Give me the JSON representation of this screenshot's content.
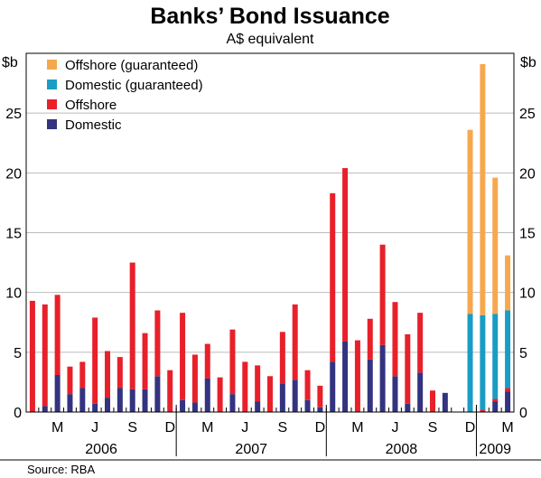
{
  "chart_data": {
    "type": "bar",
    "stacked": true,
    "title": "Banks’ Bond Issuance",
    "subtitle": "A$ equivalent",
    "yunit_left": "$b",
    "yunit_right": "$b",
    "ylim": [
      0,
      30
    ],
    "yticks": [
      0,
      5,
      10,
      15,
      20,
      25
    ],
    "source": "Source: RBA",
    "months": [
      "2006-01",
      "2006-02",
      "2006-03",
      "2006-04",
      "2006-05",
      "2006-06",
      "2006-07",
      "2006-08",
      "2006-09",
      "2006-10",
      "2006-11",
      "2006-12",
      "2007-01",
      "2007-02",
      "2007-03",
      "2007-04",
      "2007-05",
      "2007-06",
      "2007-07",
      "2007-08",
      "2007-09",
      "2007-10",
      "2007-11",
      "2007-12",
      "2008-01",
      "2008-02",
      "2008-03",
      "2008-04",
      "2008-05",
      "2008-06",
      "2008-07",
      "2008-08",
      "2008-09",
      "2008-10",
      "2008-11",
      "2008-12",
      "2009-01",
      "2009-02",
      "2009-03"
    ],
    "month_tick_labels": [
      {
        "month": "2006-03",
        "label": "M"
      },
      {
        "month": "2006-06",
        "label": "J"
      },
      {
        "month": "2006-09",
        "label": "S"
      },
      {
        "month": "2006-12",
        "label": "D"
      },
      {
        "month": "2007-03",
        "label": "M"
      },
      {
        "month": "2007-06",
        "label": "J"
      },
      {
        "month": "2007-09",
        "label": "S"
      },
      {
        "month": "2007-12",
        "label": "D"
      },
      {
        "month": "2008-03",
        "label": "M"
      },
      {
        "month": "2008-06",
        "label": "J"
      },
      {
        "month": "2008-09",
        "label": "S"
      },
      {
        "month": "2008-12",
        "label": "D"
      },
      {
        "month": "2009-03",
        "label": "M"
      }
    ],
    "year_labels": [
      {
        "label": "2006",
        "from": "2006-01",
        "to": "2006-12"
      },
      {
        "label": "2007",
        "from": "2007-01",
        "to": "2007-12"
      },
      {
        "label": "2008",
        "from": "2008-01",
        "to": "2008-12"
      },
      {
        "label": "2009",
        "from": "2009-01",
        "to": "2009-03"
      }
    ],
    "legend": {
      "position": "top-left"
    },
    "series": [
      {
        "name": "Domestic",
        "color": "#333380",
        "values": [
          0,
          0.5,
          3.1,
          1.5,
          2.0,
          0.7,
          1.2,
          2.0,
          1.9,
          1.9,
          3.0,
          0,
          1.0,
          0.8,
          2.8,
          0,
          1.5,
          0,
          0.9,
          0,
          2.4,
          2.7,
          1.0,
          0.4,
          4.2,
          5.9,
          0,
          4.4,
          5.6,
          3.0,
          0.7,
          3.3,
          0,
          1.6,
          0,
          0,
          0,
          0.9,
          1.7
        ]
      },
      {
        "name": "Offshore",
        "color": "#e8202a",
        "values": [
          9.3,
          8.5,
          6.7,
          2.3,
          2.2,
          7.2,
          3.9,
          2.6,
          10.6,
          4.7,
          5.5,
          3.5,
          7.3,
          4.0,
          2.9,
          2.9,
          5.4,
          4.2,
          3.0,
          3.0,
          4.3,
          6.3,
          2.5,
          1.8,
          14.1,
          14.5,
          6.0,
          3.4,
          8.4,
          6.2,
          5.8,
          5.0,
          1.8,
          0,
          0,
          0,
          0.2,
          0.2,
          0.3
        ]
      },
      {
        "name": "Domestic (guaranteed)",
        "color": "#1a9cc4",
        "values": [
          0,
          0,
          0,
          0,
          0,
          0,
          0,
          0,
          0,
          0,
          0,
          0,
          0,
          0,
          0,
          0,
          0,
          0,
          0,
          0,
          0,
          0,
          0,
          0,
          0,
          0,
          0,
          0,
          0,
          0,
          0,
          0,
          0,
          0,
          0,
          8.2,
          7.9,
          7.1,
          6.5
        ]
      },
      {
        "name": "Offshore (guaranteed)",
        "color": "#f6a84f",
        "values": [
          0,
          0,
          0,
          0,
          0,
          0,
          0,
          0,
          0,
          0,
          0,
          0,
          0,
          0,
          0,
          0,
          0,
          0,
          0,
          0,
          0,
          0,
          0,
          0,
          0,
          0,
          0,
          0,
          0,
          0,
          0,
          0,
          0,
          0,
          0,
          15.4,
          21.0,
          11.4,
          4.6
        ]
      }
    ],
    "legend_order": [
      "Offshore (guaranteed)",
      "Domestic (guaranteed)",
      "Offshore",
      "Domestic"
    ]
  }
}
